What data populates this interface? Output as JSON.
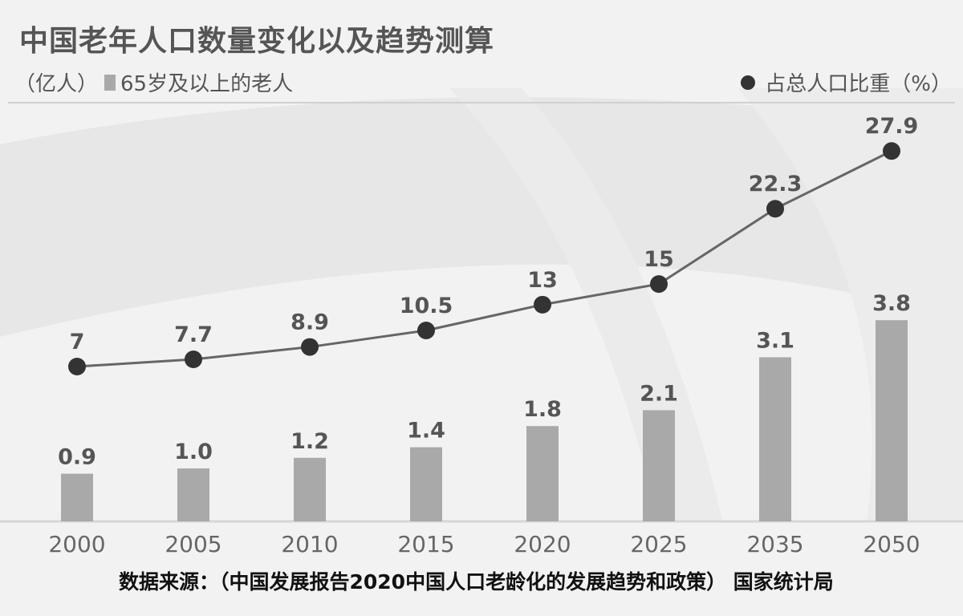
{
  "title": "中国老年人口数量变化以及趋势测算",
  "unit": "（亿人）",
  "source": "数据来源：（中国发展报告2020中国人口老龄化的发展趋势和政策） 国家统计局",
  "colors": {
    "bar": "#a9a9a9",
    "line": "#666666",
    "point": "#333333",
    "text": "#555555"
  },
  "chart_data": {
    "type": "bar",
    "categories": [
      "2000",
      "2005",
      "2010",
      "2015",
      "2020",
      "2025",
      "2035",
      "2050"
    ],
    "series": [
      {
        "name": "65岁及以上的老人",
        "type": "bar",
        "axis": "left",
        "values": [
          0.9,
          1.0,
          1.2,
          1.4,
          1.8,
          2.1,
          3.1,
          3.8
        ],
        "labels": [
          "0.9",
          "1.0",
          "1.2",
          "1.4",
          "1.8",
          "2.1",
          "3.1",
          "3.8"
        ]
      },
      {
        "name": "占总人口比重（%）",
        "type": "line",
        "axis": "right",
        "values": [
          7,
          7.7,
          8.9,
          10.5,
          13,
          15,
          22.3,
          27.9
        ],
        "labels": [
          "7",
          "7.7",
          "8.9",
          "10.5",
          "13",
          "15",
          "22.3",
          "27.9"
        ]
      }
    ],
    "ylabel": "（亿人）",
    "legend": "top",
    "grid": false
  }
}
